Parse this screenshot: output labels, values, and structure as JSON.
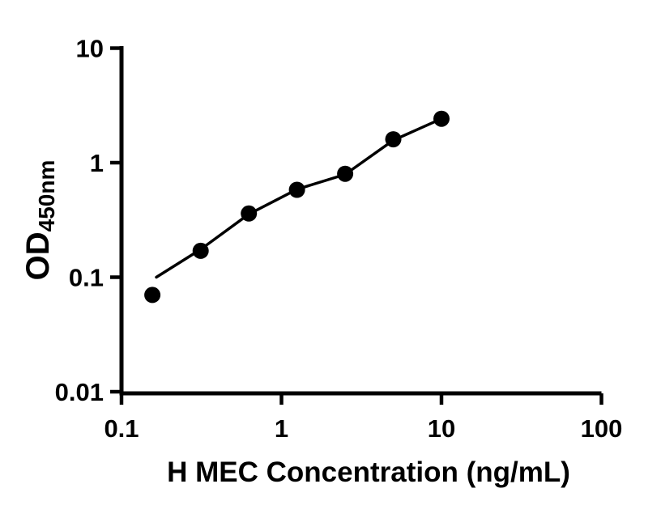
{
  "figure": {
    "background_color": "#ffffff",
    "ink_color": "#000000",
    "description": "ELISA standard curve, log-log scatter plot with fitted line"
  },
  "chart_data": {
    "type": "scatter",
    "title": "",
    "xlabel": "H MEC Concentration (ng/mL)",
    "ylabel": {
      "main": "OD",
      "sub": "450nm"
    },
    "x_scale": "log10",
    "y_scale": "log10",
    "xlim": [
      0.1,
      100
    ],
    "ylim": [
      0.01,
      10
    ],
    "grid": false,
    "legend_position": "none",
    "x_ticks": [
      {
        "value": 0.1,
        "label": "0.1"
      },
      {
        "value": 1,
        "label": "1"
      },
      {
        "value": 10,
        "label": "10"
      },
      {
        "value": 100,
        "label": "100"
      }
    ],
    "y_ticks": [
      {
        "value": 10,
        "label": "10"
      },
      {
        "value": 1,
        "label": "1"
      },
      {
        "value": 0.1,
        "label": "0.1"
      },
      {
        "value": 0.01,
        "label": "0.01"
      }
    ],
    "series": [
      {
        "name": "standard-points",
        "marker": "filled-circle",
        "color": "#000000",
        "points": [
          {
            "x": 0.156,
            "y": 0.07
          },
          {
            "x": 0.3125,
            "y": 0.17
          },
          {
            "x": 0.625,
            "y": 0.36
          },
          {
            "x": 1.25,
            "y": 0.58
          },
          {
            "x": 2.5,
            "y": 0.8
          },
          {
            "x": 5,
            "y": 1.6
          },
          {
            "x": 10,
            "y": 2.42
          }
        ]
      }
    ],
    "fit_line": {
      "color": "#000000",
      "points": [
        {
          "x": 0.165,
          "y": 0.1
        },
        {
          "x": 0.3125,
          "y": 0.175
        },
        {
          "x": 0.625,
          "y": 0.355
        },
        {
          "x": 1.25,
          "y": 0.585
        },
        {
          "x": 2.5,
          "y": 0.79
        },
        {
          "x": 5,
          "y": 1.57
        },
        {
          "x": 10,
          "y": 2.42
        }
      ]
    }
  }
}
